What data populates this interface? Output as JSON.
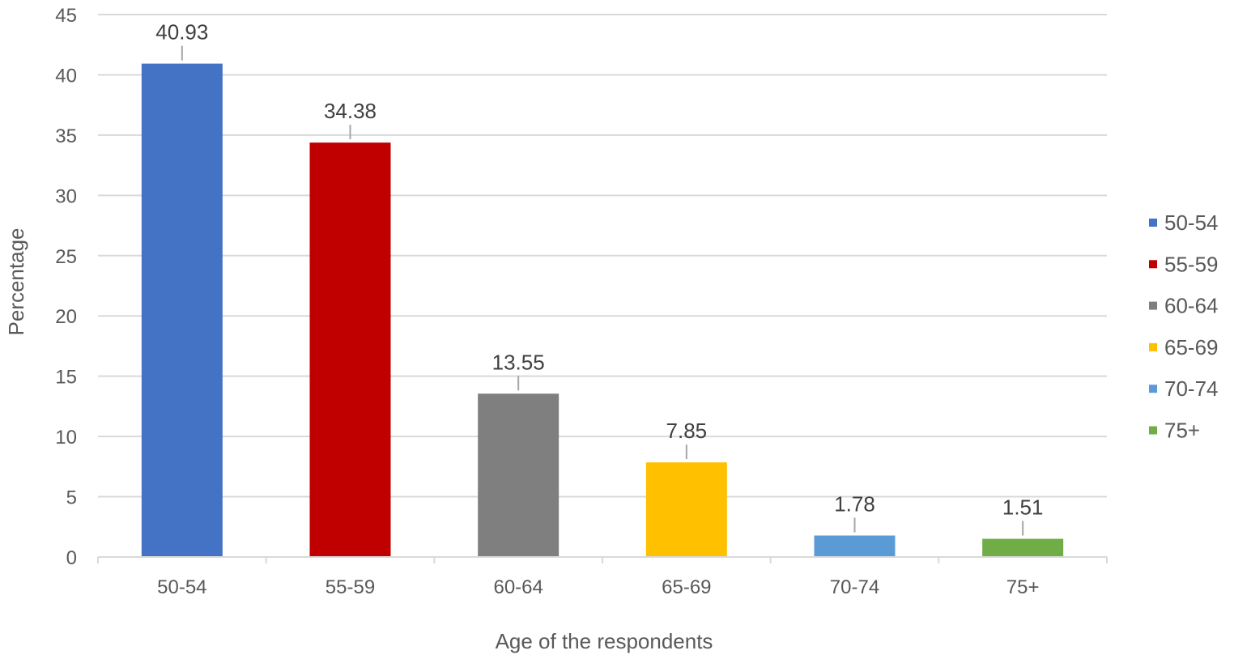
{
  "chart_data": {
    "type": "bar",
    "title": "",
    "xlabel": "Age of the respondents",
    "ylabel": "Percentage",
    "categories": [
      "50-54",
      "55-59",
      "60-64",
      "65-69",
      "70-74",
      "75+"
    ],
    "values": [
      40.93,
      34.38,
      13.55,
      7.85,
      1.78,
      1.51
    ],
    "data_labels": [
      "40.93",
      "34.38",
      "13.55",
      "7.85",
      "1.78",
      "1.51"
    ],
    "colors": [
      "#4472C4",
      "#C00000",
      "#7F7F7F",
      "#FFC000",
      "#5B9BD5",
      "#70AD47"
    ],
    "ylim": [
      0,
      45
    ],
    "yticks": [
      0,
      5,
      10,
      15,
      20,
      25,
      30,
      35,
      40,
      45
    ],
    "ytick_labels": [
      "0",
      "5",
      "10",
      "15",
      "20",
      "25",
      "30",
      "35",
      "40",
      "45"
    ],
    "grid": true,
    "legend": {
      "position": "right",
      "entries": [
        "50-54",
        "55-59",
        "60-64",
        "65-69",
        "70-74",
        "75+"
      ]
    }
  }
}
